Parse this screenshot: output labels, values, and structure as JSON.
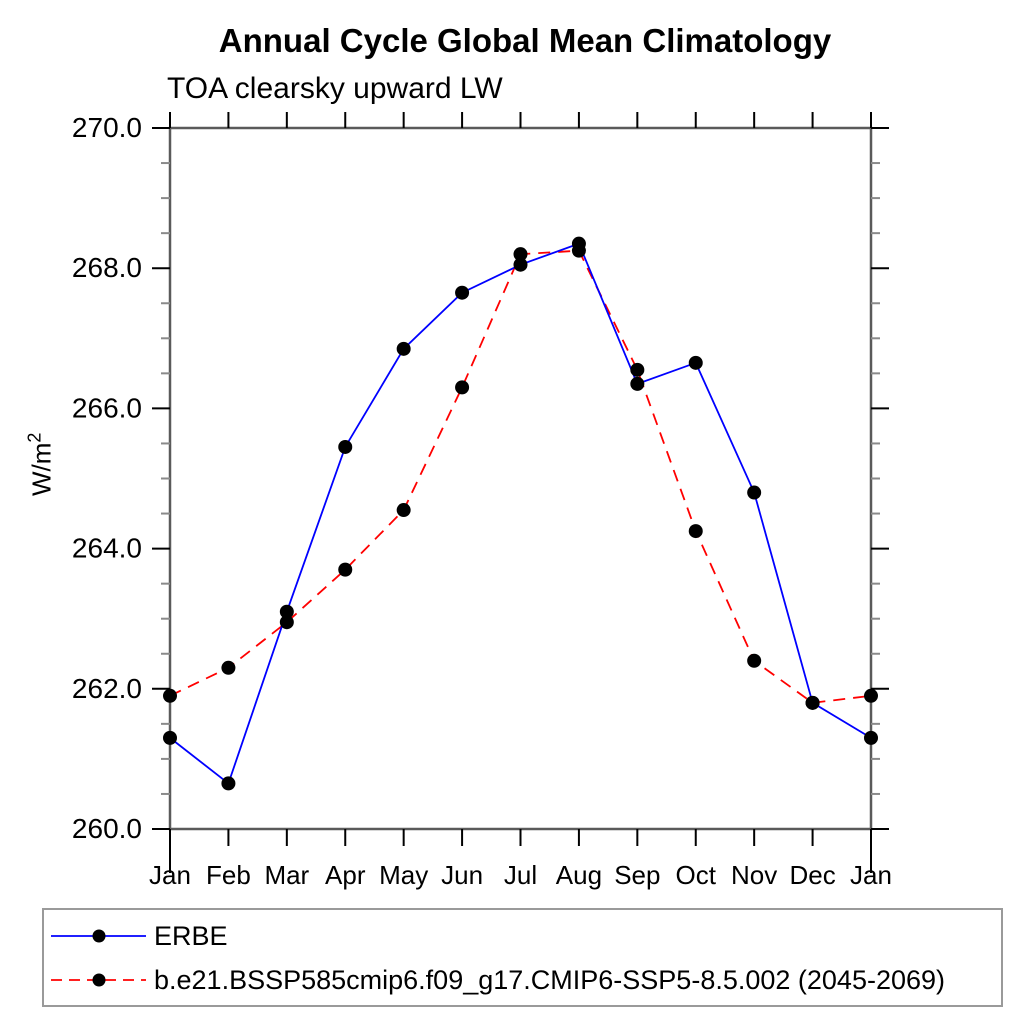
{
  "title": "Annual Cycle Global Mean Climatology",
  "subtitle": "TOA clearsky upward LW",
  "ylabel_base": "W/m",
  "ylabel_exponent": "2",
  "colors": {
    "erbe_line": "#0000ff",
    "model_line": "#ff0000",
    "marker": "#000000",
    "spine": "#5a5a5a",
    "major_tick": "#000000",
    "minor_tick": "#8a8a8a"
  },
  "legend": {
    "position": "bottom-left",
    "entries": [
      {
        "label": "ERBE",
        "line_style": "solid",
        "marker": "filled-circle"
      },
      {
        "label": "b.e21.BSSP585cmip6.f09_g17.CMIP6-SSP5-8.5.002 (2045-2069)",
        "line_style": "dashed",
        "marker": "filled-circle"
      }
    ]
  },
  "chart_data": {
    "type": "line",
    "title": "Annual Cycle Global Mean Climatology",
    "subtitle": "TOA clearsky upward LW",
    "ylabel": "W/m²",
    "xlabel": "",
    "categories": [
      "Jan",
      "Feb",
      "Mar",
      "Apr",
      "May",
      "Jun",
      "Jul",
      "Aug",
      "Sep",
      "Oct",
      "Nov",
      "Dec",
      "Jan"
    ],
    "series": [
      {
        "name": "ERBE",
        "color": "#0000ff",
        "style": "solid",
        "marker": "filled-circle-black",
        "values": [
          261.3,
          260.65,
          263.1,
          265.45,
          266.85,
          267.65,
          268.05,
          268.35,
          266.35,
          266.65,
          264.8,
          261.8,
          261.3
        ]
      },
      {
        "name": "b.e21.BSSP585cmip6.f09_g17.CMIP6-SSP5-8.5.002 (2045-2069)",
        "color": "#ff0000",
        "style": "dashed",
        "marker": "filled-circle-black",
        "values": [
          261.9,
          262.3,
          262.95,
          263.7,
          264.55,
          266.3,
          268.2,
          268.25,
          266.55,
          264.25,
          262.4,
          261.8,
          261.9
        ]
      }
    ],
    "ylim": [
      260.0,
      270.0
    ],
    "ytick_major_step": 2.0,
    "ytick_minor_step": 0.5,
    "ytick_labels": [
      "260.0",
      "262.0",
      "264.0",
      "266.0",
      "268.0",
      "270.0"
    ],
    "grid": false,
    "legend_position": "bottom"
  }
}
